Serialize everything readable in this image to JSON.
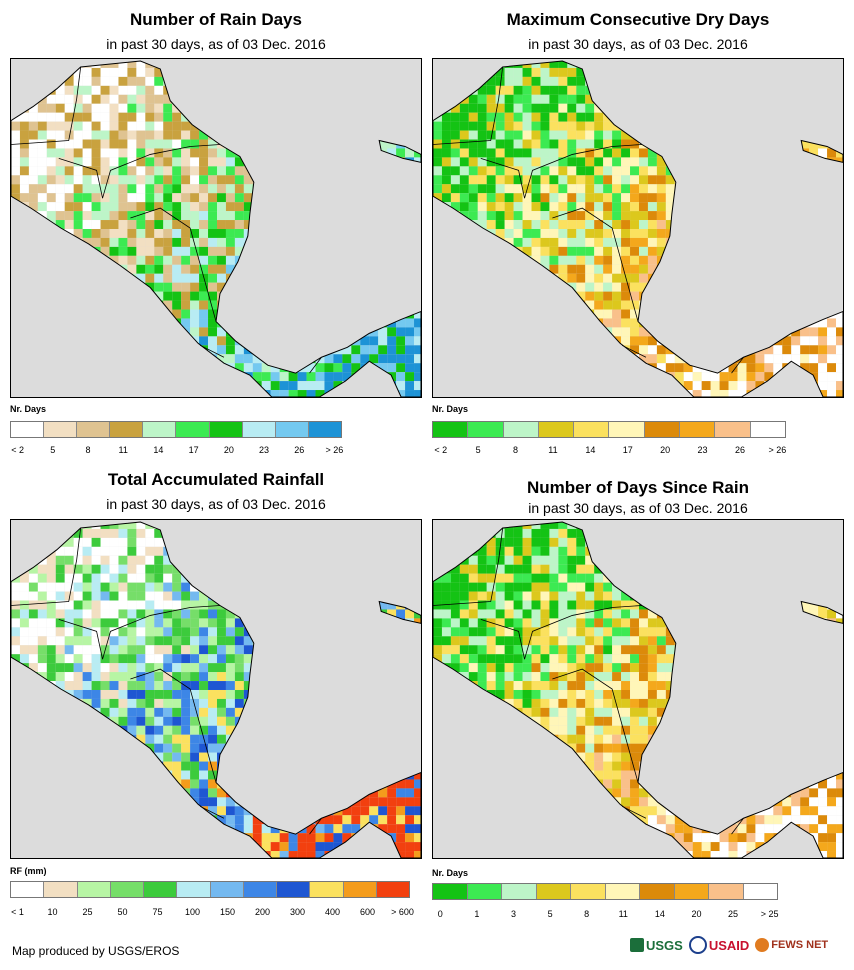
{
  "panels": [
    {
      "title": "Number of Rain Days",
      "subtitle": "in past 30 days, as of 03 Dec. 2016",
      "legend_label": "Nr. Days",
      "legend_colors": [
        "#ffffff",
        "#f2dfc2",
        "#dfc391",
        "#c9a23f",
        "#bdf5c8",
        "#3cea52",
        "#14c314",
        "#b8ecf3",
        "#74c9f0",
        "#1d93d6"
      ],
      "legend_ticks": [
        "< 2",
        "5",
        "8",
        "11",
        "14",
        "17",
        "20",
        "23",
        "26",
        "> 26"
      ]
    },
    {
      "title": "Maximum Consecutive Dry Days",
      "subtitle": "in past 30 days, as of 03 Dec. 2016",
      "legend_label": "Nr. Days",
      "legend_colors": [
        "#14c314",
        "#3cea52",
        "#bdf5c8",
        "#dcc81d",
        "#fbe15f",
        "#fff6b8",
        "#dc8a0a",
        "#f4a81c",
        "#f9c08a",
        "#ffffff"
      ],
      "legend_ticks": [
        "< 2",
        "5",
        "8",
        "11",
        "14",
        "17",
        "20",
        "23",
        "26",
        "> 26"
      ]
    },
    {
      "title": "Total Accumulated Rainfall",
      "subtitle": "in past 30 days, as of 03 Dec. 2016",
      "legend_label": "RF (mm)",
      "legend_colors": [
        "#ffffff",
        "#f2dfc2",
        "#b7f5a4",
        "#76de69",
        "#3ccb3c",
        "#b8ecf3",
        "#74b9f0",
        "#3d86e6",
        "#1e56d2",
        "#fbe15f",
        "#f49c1c",
        "#f2400f"
      ],
      "legend_ticks": [
        "< 1",
        "10",
        "25",
        "50",
        "75",
        "100",
        "150",
        "200",
        "300",
        "400",
        "600",
        "> 600"
      ]
    },
    {
      "title": "Number of Days Since Rain",
      "subtitle": "in past 30 days, as of 03 Dec. 2016",
      "legend_label": "Nr. Days",
      "legend_colors": [
        "#14c314",
        "#3cea52",
        "#bdf5c8",
        "#dcc81d",
        "#fbe15f",
        "#fff6b8",
        "#dc8a0a",
        "#f4a81c",
        "#f9c08a",
        "#ffffff"
      ],
      "legend_ticks": [
        "0",
        "1",
        "3",
        "5",
        "8",
        "11",
        "14",
        "20",
        "25",
        "> 25"
      ]
    }
  ],
  "footer": "Map produced by USGS/EROS",
  "logos": [
    "USGS",
    "USAID",
    "FEWS NET"
  ]
}
